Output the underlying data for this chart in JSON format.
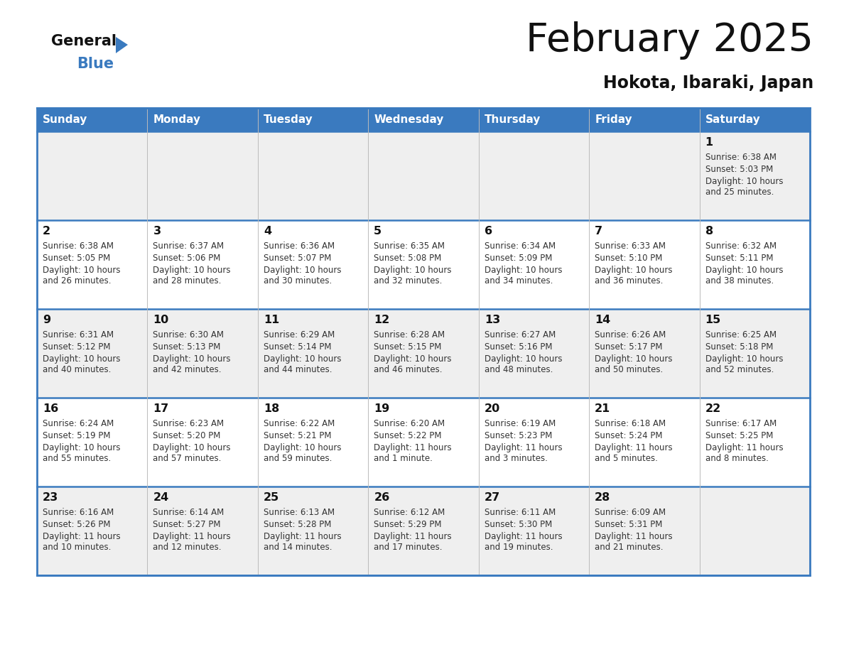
{
  "title": "February 2025",
  "subtitle": "Hokota, Ibaraki, Japan",
  "days_of_week": [
    "Sunday",
    "Monday",
    "Tuesday",
    "Wednesday",
    "Thursday",
    "Friday",
    "Saturday"
  ],
  "header_bg": "#3a7abf",
  "header_text": "#ffffff",
  "cell_bg_gray": "#efefef",
  "cell_bg_white": "#ffffff",
  "border_color": "#3a7abf",
  "title_color": "#111111",
  "subtitle_color": "#111111",
  "day_number_color": "#111111",
  "cell_text_color": "#333333",
  "logo_black": "#111111",
  "logo_blue": "#3a7abf",
  "calendar_data": [
    {
      "day": 1,
      "col": 6,
      "row": 0,
      "sunrise": "6:38 AM",
      "sunset": "5:03 PM",
      "daylight": "10 hours and 25 minutes."
    },
    {
      "day": 2,
      "col": 0,
      "row": 1,
      "sunrise": "6:38 AM",
      "sunset": "5:05 PM",
      "daylight": "10 hours and 26 minutes."
    },
    {
      "day": 3,
      "col": 1,
      "row": 1,
      "sunrise": "6:37 AM",
      "sunset": "5:06 PM",
      "daylight": "10 hours and 28 minutes."
    },
    {
      "day": 4,
      "col": 2,
      "row": 1,
      "sunrise": "6:36 AM",
      "sunset": "5:07 PM",
      "daylight": "10 hours and 30 minutes."
    },
    {
      "day": 5,
      "col": 3,
      "row": 1,
      "sunrise": "6:35 AM",
      "sunset": "5:08 PM",
      "daylight": "10 hours and 32 minutes."
    },
    {
      "day": 6,
      "col": 4,
      "row": 1,
      "sunrise": "6:34 AM",
      "sunset": "5:09 PM",
      "daylight": "10 hours and 34 minutes."
    },
    {
      "day": 7,
      "col": 5,
      "row": 1,
      "sunrise": "6:33 AM",
      "sunset": "5:10 PM",
      "daylight": "10 hours and 36 minutes."
    },
    {
      "day": 8,
      "col": 6,
      "row": 1,
      "sunrise": "6:32 AM",
      "sunset": "5:11 PM",
      "daylight": "10 hours and 38 minutes."
    },
    {
      "day": 9,
      "col": 0,
      "row": 2,
      "sunrise": "6:31 AM",
      "sunset": "5:12 PM",
      "daylight": "10 hours and 40 minutes."
    },
    {
      "day": 10,
      "col": 1,
      "row": 2,
      "sunrise": "6:30 AM",
      "sunset": "5:13 PM",
      "daylight": "10 hours and 42 minutes."
    },
    {
      "day": 11,
      "col": 2,
      "row": 2,
      "sunrise": "6:29 AM",
      "sunset": "5:14 PM",
      "daylight": "10 hours and 44 minutes."
    },
    {
      "day": 12,
      "col": 3,
      "row": 2,
      "sunrise": "6:28 AM",
      "sunset": "5:15 PM",
      "daylight": "10 hours and 46 minutes."
    },
    {
      "day": 13,
      "col": 4,
      "row": 2,
      "sunrise": "6:27 AM",
      "sunset": "5:16 PM",
      "daylight": "10 hours and 48 minutes."
    },
    {
      "day": 14,
      "col": 5,
      "row": 2,
      "sunrise": "6:26 AM",
      "sunset": "5:17 PM",
      "daylight": "10 hours and 50 minutes."
    },
    {
      "day": 15,
      "col": 6,
      "row": 2,
      "sunrise": "6:25 AM",
      "sunset": "5:18 PM",
      "daylight": "10 hours and 52 minutes."
    },
    {
      "day": 16,
      "col": 0,
      "row": 3,
      "sunrise": "6:24 AM",
      "sunset": "5:19 PM",
      "daylight": "10 hours and 55 minutes."
    },
    {
      "day": 17,
      "col": 1,
      "row": 3,
      "sunrise": "6:23 AM",
      "sunset": "5:20 PM",
      "daylight": "10 hours and 57 minutes."
    },
    {
      "day": 18,
      "col": 2,
      "row": 3,
      "sunrise": "6:22 AM",
      "sunset": "5:21 PM",
      "daylight": "10 hours and 59 minutes."
    },
    {
      "day": 19,
      "col": 3,
      "row": 3,
      "sunrise": "6:20 AM",
      "sunset": "5:22 PM",
      "daylight": "11 hours and 1 minute."
    },
    {
      "day": 20,
      "col": 4,
      "row": 3,
      "sunrise": "6:19 AM",
      "sunset": "5:23 PM",
      "daylight": "11 hours and 3 minutes."
    },
    {
      "day": 21,
      "col": 5,
      "row": 3,
      "sunrise": "6:18 AM",
      "sunset": "5:24 PM",
      "daylight": "11 hours and 5 minutes."
    },
    {
      "day": 22,
      "col": 6,
      "row": 3,
      "sunrise": "6:17 AM",
      "sunset": "5:25 PM",
      "daylight": "11 hours and 8 minutes."
    },
    {
      "day": 23,
      "col": 0,
      "row": 4,
      "sunrise": "6:16 AM",
      "sunset": "5:26 PM",
      "daylight": "11 hours and 10 minutes."
    },
    {
      "day": 24,
      "col": 1,
      "row": 4,
      "sunrise": "6:14 AM",
      "sunset": "5:27 PM",
      "daylight": "11 hours and 12 minutes."
    },
    {
      "day": 25,
      "col": 2,
      "row": 4,
      "sunrise": "6:13 AM",
      "sunset": "5:28 PM",
      "daylight": "11 hours and 14 minutes."
    },
    {
      "day": 26,
      "col": 3,
      "row": 4,
      "sunrise": "6:12 AM",
      "sunset": "5:29 PM",
      "daylight": "11 hours and 17 minutes."
    },
    {
      "day": 27,
      "col": 4,
      "row": 4,
      "sunrise": "6:11 AM",
      "sunset": "5:30 PM",
      "daylight": "11 hours and 19 minutes."
    },
    {
      "day": 28,
      "col": 5,
      "row": 4,
      "sunrise": "6:09 AM",
      "sunset": "5:31 PM",
      "daylight": "11 hours and 21 minutes."
    }
  ]
}
